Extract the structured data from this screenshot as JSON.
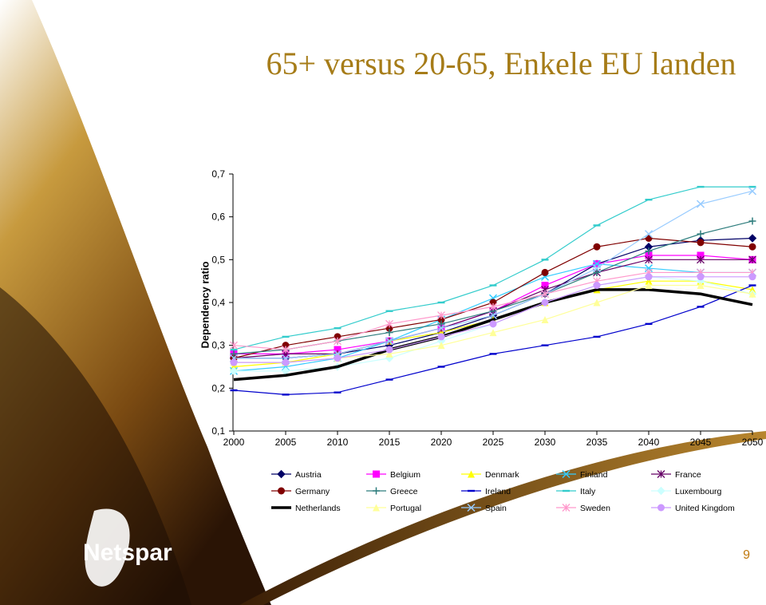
{
  "chart_data": {
    "type": "line",
    "title": "65+ versus 20-65, Enkele EU landen",
    "y_label": "Dependency ratio",
    "x": [
      2000,
      2005,
      2010,
      2015,
      2020,
      2025,
      2030,
      2035,
      2040,
      2045,
      2050
    ],
    "xlim": [
      2000,
      2050
    ],
    "xticks": [
      2000,
      2005,
      2010,
      2015,
      2020,
      2025,
      2030,
      2035,
      2040,
      2045,
      2050
    ],
    "ylim": [
      0.1,
      0.7
    ],
    "yticks": [
      {
        "value": 0.1,
        "label": "0,1"
      },
      {
        "value": 0.2,
        "label": "0,2"
      },
      {
        "value": 0.3,
        "label": "0,3"
      },
      {
        "value": 0.4,
        "label": "0,4"
      },
      {
        "value": 0.5,
        "label": "0,5"
      },
      {
        "value": 0.6,
        "label": "0,6"
      },
      {
        "value": 0.7,
        "label": "0,7"
      }
    ],
    "grid": false,
    "legend": "bottom",
    "series": [
      {
        "name": "Austria",
        "color": "#000066",
        "marker": "diamond",
        "values": [
          0.27,
          0.27,
          0.28,
          0.3,
          0.33,
          0.37,
          0.42,
          0.49,
          0.53,
          0.545,
          0.55
        ]
      },
      {
        "name": "Belgium",
        "color": "#ff00ff",
        "marker": "square",
        "values": [
          0.28,
          0.28,
          0.29,
          0.31,
          0.34,
          0.38,
          0.44,
          0.49,
          0.51,
          0.51,
          0.5
        ]
      },
      {
        "name": "Denmark",
        "color": "#ffff00",
        "marker": "triangle",
        "values": [
          0.25,
          0.26,
          0.28,
          0.31,
          0.33,
          0.36,
          0.4,
          0.43,
          0.45,
          0.45,
          0.43
        ]
      },
      {
        "name": "Finland",
        "color": "#33ccff",
        "marker": "x",
        "values": [
          0.24,
          0.25,
          0.27,
          0.31,
          0.36,
          0.41,
          0.46,
          0.49,
          0.48,
          0.47,
          0.47
        ]
      },
      {
        "name": "France",
        "color": "#660066",
        "marker": "star",
        "values": [
          0.27,
          0.28,
          0.28,
          0.31,
          0.34,
          0.38,
          0.43,
          0.47,
          0.5,
          0.5,
          0.5
        ]
      },
      {
        "name": "Germany",
        "color": "#800000",
        "marker": "circle",
        "values": [
          0.27,
          0.3,
          0.32,
          0.34,
          0.36,
          0.4,
          0.47,
          0.53,
          0.55,
          0.54,
          0.53
        ]
      },
      {
        "name": "Greece",
        "color": "#2e7d7d",
        "marker": "plus",
        "values": [
          0.28,
          0.29,
          0.31,
          0.33,
          0.35,
          0.38,
          0.42,
          0.47,
          0.52,
          0.56,
          0.59
        ]
      },
      {
        "name": "Ireland",
        "color": "#0000cc",
        "marker": "dash",
        "values": [
          0.195,
          0.185,
          0.19,
          0.22,
          0.25,
          0.28,
          0.3,
          0.32,
          0.35,
          0.39,
          0.44
        ]
      },
      {
        "name": "Italy",
        "color": "#33cccc",
        "marker": "dash",
        "values": [
          0.29,
          0.32,
          0.34,
          0.38,
          0.4,
          0.44,
          0.5,
          0.58,
          0.64,
          0.67,
          0.67
        ]
      },
      {
        "name": "Luxembourg",
        "color": "#ccffff",
        "marker": "diamond",
        "values": [
          0.24,
          0.24,
          0.25,
          0.27,
          0.31,
          0.35,
          0.4,
          0.44,
          0.46,
          0.45,
          0.42
        ]
      },
      {
        "name": "Netherlands",
        "color": "#000000",
        "marker": "none",
        "values": [
          0.22,
          0.23,
          0.25,
          0.29,
          0.32,
          0.36,
          0.4,
          0.43,
          0.43,
          0.42,
          0.395
        ]
      },
      {
        "name": "Portugal",
        "color": "#ffff99",
        "marker": "triangle",
        "values": [
          0.26,
          0.26,
          0.27,
          0.28,
          0.3,
          0.33,
          0.36,
          0.4,
          0.44,
          0.44,
          0.42
        ]
      },
      {
        "name": "Spain",
        "color": "#99ccff",
        "marker": "x",
        "values": [
          0.27,
          0.27,
          0.28,
          0.31,
          0.34,
          0.37,
          0.42,
          0.48,
          0.56,
          0.63,
          0.66
        ]
      },
      {
        "name": "Sweden",
        "color": "#ff99cc",
        "marker": "star",
        "values": [
          0.3,
          0.29,
          0.31,
          0.35,
          0.37,
          0.39,
          0.42,
          0.45,
          0.47,
          0.47,
          0.47
        ]
      },
      {
        "name": "United Kingdom",
        "color": "#cc99ff",
        "marker": "circle",
        "values": [
          0.26,
          0.26,
          0.27,
          0.29,
          0.32,
          0.35,
          0.4,
          0.44,
          0.46,
          0.46,
          0.46
        ]
      }
    ]
  },
  "logo": "Netspar",
  "page_number": "9"
}
